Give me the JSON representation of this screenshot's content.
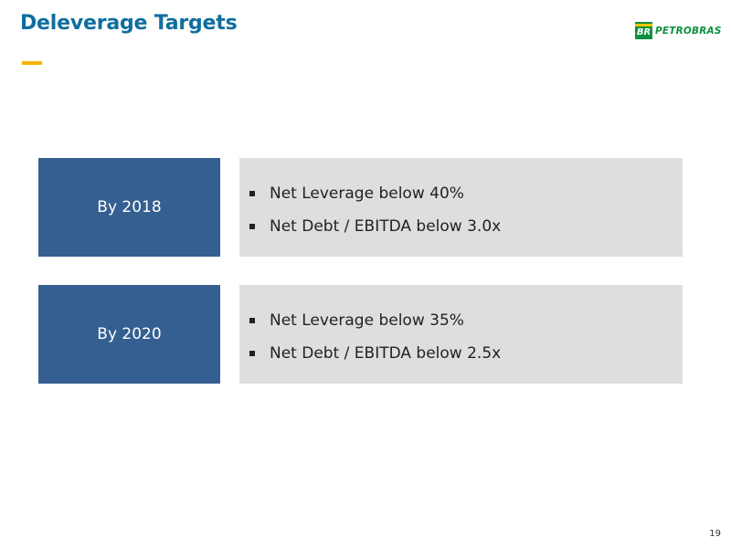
{
  "slide": {
    "title": "Deleverage Targets",
    "page_number": "19"
  },
  "logo": {
    "mark_text": "BR",
    "name": "PETROBRAS",
    "colors": {
      "green": "#0f8f3f",
      "yellow": "#f5c400"
    }
  },
  "targets": [
    {
      "label": "By 2018",
      "items": [
        "Net Leverage below 40%",
        "Net Debt / EBITDA below 3.0x"
      ]
    },
    {
      "label": "By 2020",
      "items": [
        "Net Leverage below 35%",
        "Net Debt / EBITDA below 2.5x"
      ]
    }
  ],
  "colors": {
    "title": "#0f6e9e",
    "accent": "#f5b400",
    "label_background": "#365f91",
    "box_background": "#dedede"
  }
}
